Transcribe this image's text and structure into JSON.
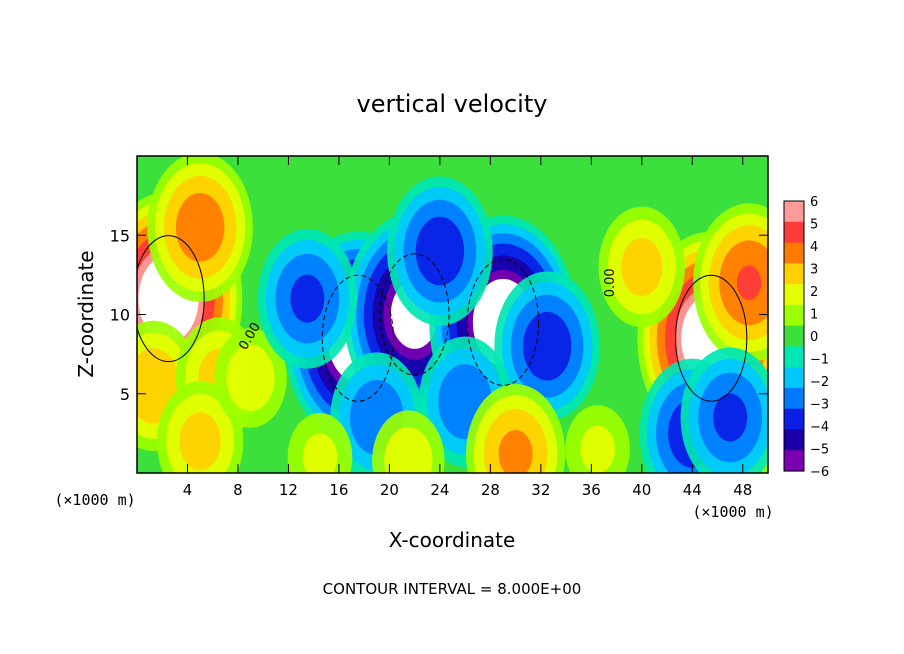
{
  "chart_data": {
    "type": "heatmap",
    "title": "vertical velocity",
    "xlabel": "X-coordinate",
    "ylabel": "Z-coordinate",
    "x_unit_left": "(×1000 m)",
    "x_unit_right": "(×1000 m)",
    "xlim": [
      0,
      50
    ],
    "ylim": [
      0,
      20
    ],
    "x_ticks": [
      4,
      8,
      12,
      16,
      20,
      24,
      28,
      32,
      36,
      40,
      44,
      48
    ],
    "y_ticks": [
      5,
      10,
      15
    ],
    "colorbar": {
      "min": -6,
      "max": 6,
      "ticks": [
        6,
        5,
        4,
        3,
        2,
        1,
        0,
        -1,
        -2,
        -3,
        -4,
        -5,
        -6
      ],
      "colors": [
        "#ff9a9a",
        "#ff3a3a",
        "#ff7a00",
        "#ffcf00",
        "#e5ff00",
        "#9cff00",
        "#3ce03c",
        "#00e6b4",
        "#00c8ff",
        "#007bff",
        "#0a1ee6",
        "#1a00a8",
        "#7a00b0"
      ]
    },
    "out_of_range_color": "#ffffff",
    "contour_labels": [
      {
        "text": "0.00",
        "x": 9.2,
        "z": 8.5,
        "rotate": -60
      },
      {
        "text": "0.00",
        "x": 37.8,
        "z": 12.0,
        "rotate": -90
      }
    ],
    "features": [
      {
        "x": 2.5,
        "z": 11.0,
        "w": 0.95
      },
      {
        "x": 1.3,
        "z": 5.5,
        "w": 0.5
      },
      {
        "x": 5.0,
        "z": 15.5,
        "w": 0.6
      },
      {
        "x": 6.5,
        "z": 6.0,
        "w": 0.45
      },
      {
        "x": 5.0,
        "z": 2.0,
        "w": 0.45
      },
      {
        "x": 9.0,
        "z": 6.0,
        "w": 0.35
      },
      {
        "x": 45.5,
        "z": 8.5,
        "w": 0.95
      },
      {
        "x": 48.5,
        "z": 12.0,
        "w": 0.65
      },
      {
        "x": 40.0,
        "z": 13.0,
        "w": 0.45
      },
      {
        "x": 48.5,
        "z": 3.0,
        "w": 0.45
      },
      {
        "x": 44.0,
        "z": 2.5,
        "w": -0.6
      },
      {
        "x": 47.0,
        "z": 3.5,
        "w": -0.55
      },
      {
        "x": 17.5,
        "z": 8.5,
        "w": -0.95
      },
      {
        "x": 22.0,
        "z": 10.0,
        "w": -0.9
      },
      {
        "x": 29.0,
        "z": 9.5,
        "w": -0.95
      },
      {
        "x": 24.0,
        "z": 14.0,
        "w": -0.6
      },
      {
        "x": 32.5,
        "z": 8.0,
        "w": -0.6
      },
      {
        "x": 13.5,
        "z": 11.0,
        "w": -0.55
      },
      {
        "x": 19.0,
        "z": 3.5,
        "w": -0.5
      },
      {
        "x": 26.0,
        "z": 4.5,
        "w": -0.5
      },
      {
        "x": 14.5,
        "z": 1.0,
        "w": 0.3
      },
      {
        "x": 21.5,
        "z": 0.8,
        "w": 0.35
      },
      {
        "x": 30.0,
        "z": 1.2,
        "w": 0.55
      },
      {
        "x": 36.5,
        "z": 1.5,
        "w": 0.3
      }
    ],
    "footer": "CONTOUR INTERVAL = 8.000E+00"
  }
}
